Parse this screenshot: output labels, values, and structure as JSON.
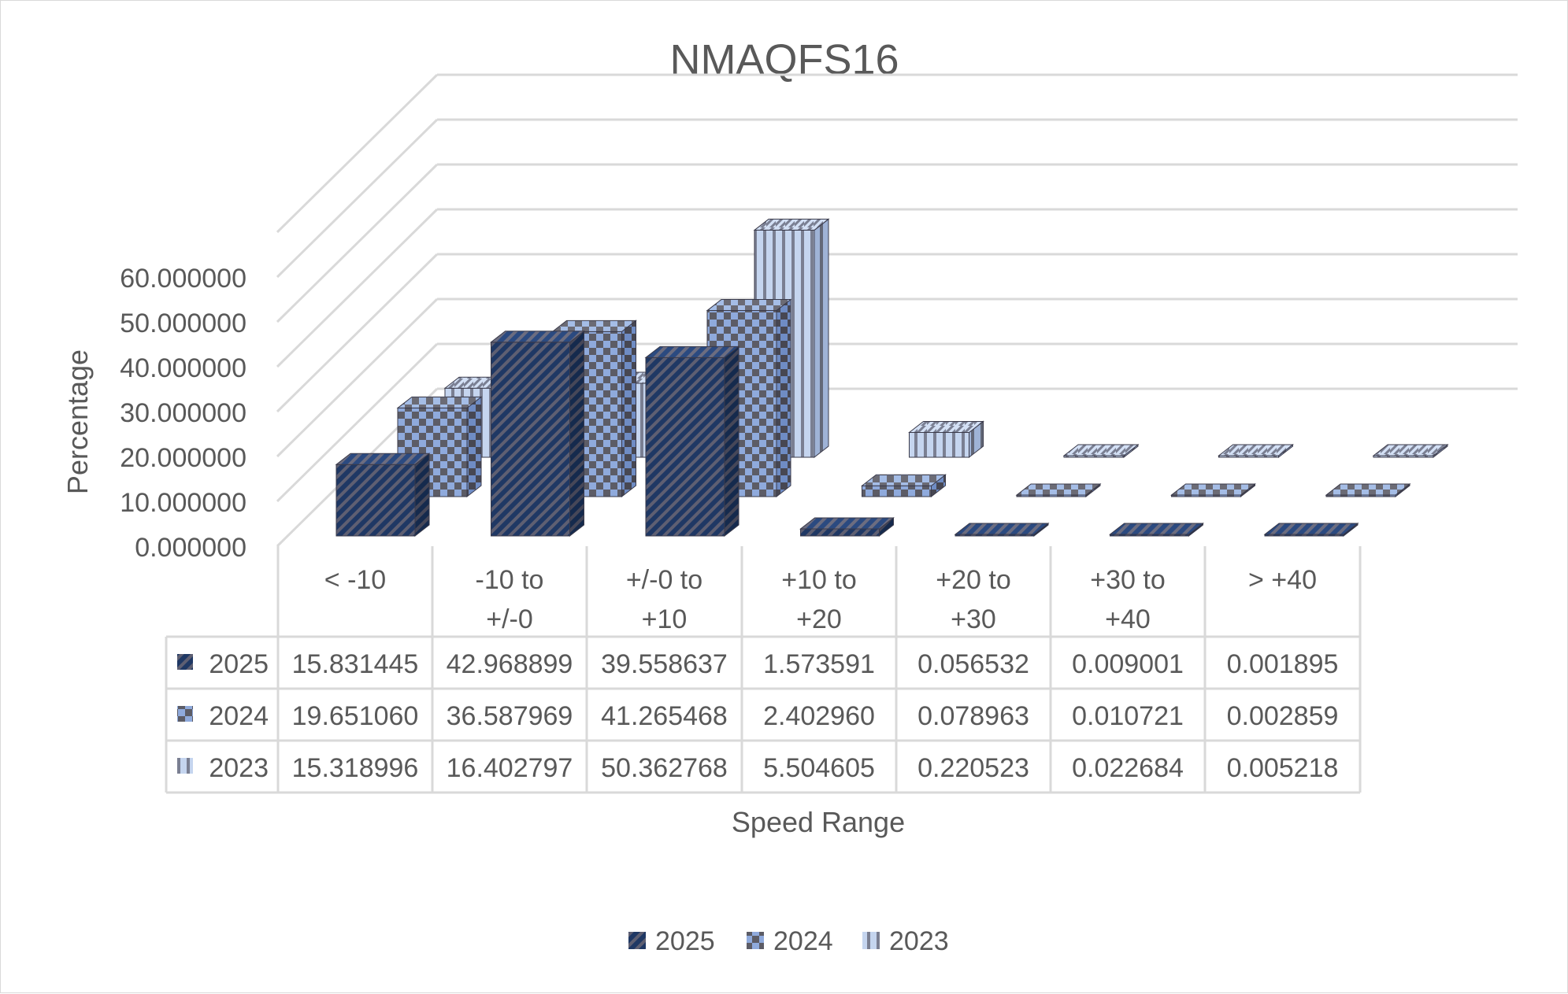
{
  "chart_data": {
    "type": "bar",
    "style": "3d-clustered-column-with-data-table",
    "title": "NMAQFS16",
    "xlabel": "Speed Range",
    "ylabel": "Percentage",
    "ylim": [
      0,
      60
    ],
    "y_ticks": [
      "0.000000",
      "10.000000",
      "20.000000",
      "30.000000",
      "40.000000",
      "50.000000",
      "60.000000"
    ],
    "categories": [
      [
        "< -10"
      ],
      [
        "-10 to",
        "+/-0"
      ],
      [
        "+/-0 to",
        "+10"
      ],
      [
        "+10 to",
        "+20"
      ],
      [
        "+20 to",
        "+30"
      ],
      [
        "+30 to",
        "+40"
      ],
      [
        "> +40"
      ]
    ],
    "series": [
      {
        "name": "2025",
        "pattern": "diagonal-stripes",
        "colors": {
          "base": "#1f3864",
          "accent": "#5b5b6e"
        },
        "values": [
          15.831445,
          42.968899,
          39.558637,
          1.573591,
          0.056532,
          0.009001,
          0.001895
        ],
        "labels": [
          "15.831445",
          "42.968899",
          "39.558637",
          "1.573591",
          "0.056532",
          "0.009001",
          "0.001895"
        ]
      },
      {
        "name": "2024",
        "pattern": "checkerboard",
        "colors": {
          "base": "#8faadc",
          "accent": "#595959"
        },
        "values": [
          19.65106,
          36.587969,
          41.265468,
          2.40296,
          0.078963,
          0.010721,
          0.002859
        ],
        "labels": [
          "19.651060",
          "36.587969",
          "41.265468",
          "2.402960",
          "0.078963",
          "0.010721",
          "0.002859"
        ]
      },
      {
        "name": "2023",
        "pattern": "vertical-stripes",
        "colors": {
          "base": "#b4c7e7",
          "accent": "#7f7f8f"
        },
        "values": [
          15.318996,
          16.402797,
          50.362768,
          5.504605,
          0.220523,
          0.022684,
          0.005218
        ],
        "labels": [
          "15.318996",
          "16.402797",
          "50.362768",
          "5.504605",
          "0.220523",
          "0.022684",
          "0.005218"
        ]
      }
    ],
    "legend": {
      "position": "bottom",
      "items": [
        "2025",
        "2024",
        "2023"
      ]
    },
    "grid": true,
    "data_table": true
  }
}
